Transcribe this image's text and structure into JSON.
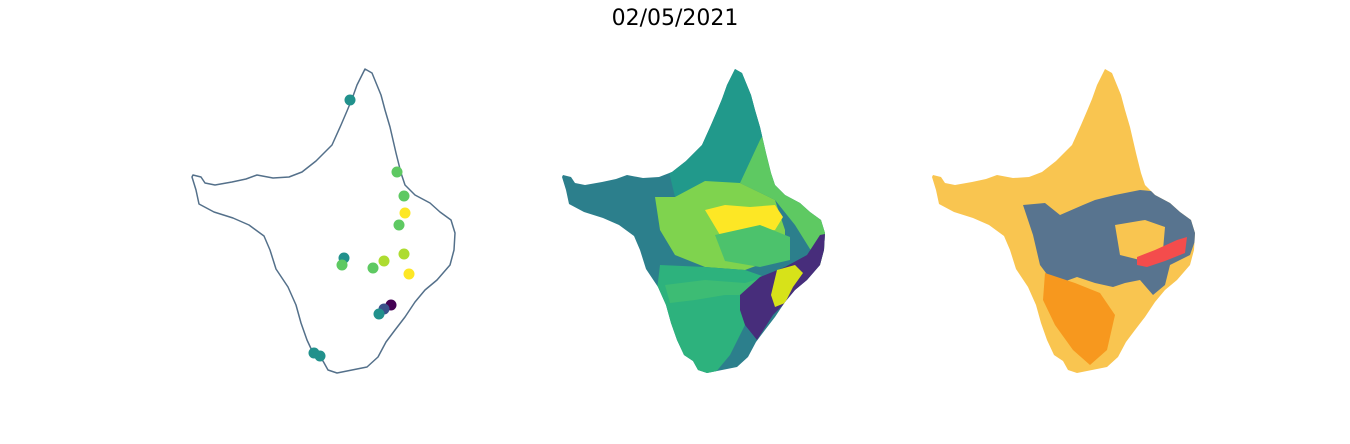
{
  "title": "02/05/2021",
  "colors": {
    "outline": "#54708a",
    "viridis": [
      "#440154",
      "#472d7b",
      "#3b528b",
      "#2c728e",
      "#21918c",
      "#28ae80",
      "#5ec962",
      "#addc30",
      "#fde725"
    ],
    "risk": {
      "low": "#f9c550",
      "medium": "#f7981e",
      "high": "#f44c4c",
      "none": "#58748f"
    }
  },
  "stations": [
    {
      "v": 0.5
    },
    {
      "v": 0.72
    },
    {
      "v": 0.74
    },
    {
      "v": 0.95
    },
    {
      "v": 0.7
    },
    {
      "v": 0.85
    },
    {
      "v": 0.82
    },
    {
      "v": 0.48
    },
    {
      "v": 0.72
    },
    {
      "v": 0.76
    },
    {
      "v": 0.98
    },
    {
      "v": 0.05
    },
    {
      "v": 0.2
    },
    {
      "v": 0.45
    },
    {
      "v": 0.5
    },
    {
      "v": 0.55
    }
  ]
}
